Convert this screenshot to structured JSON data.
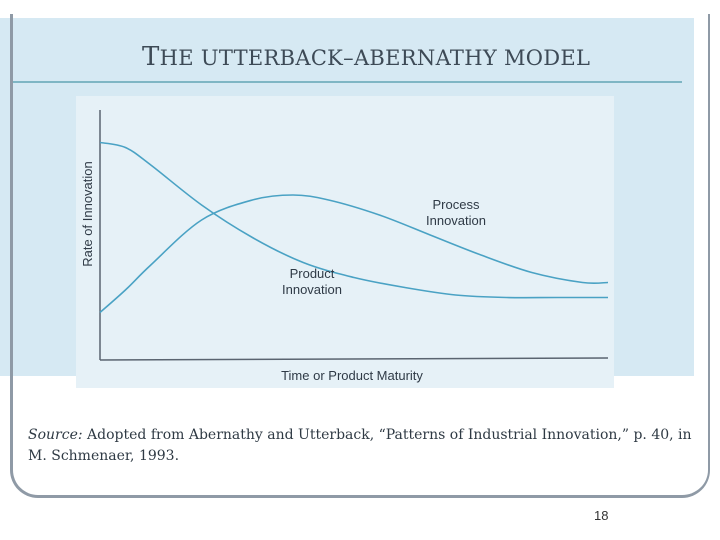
{
  "slide": {
    "title_lead": "T",
    "title_rest": "HE UTTERBACK–ABERNATHY MODEL",
    "source_label": "Source:",
    "source_text": "Adopted from Abernathy and Utterback, “Patterns of Industrial Innovation,” p. 40, in M. Schmenaer, 1993.",
    "page_number": "18"
  },
  "colors": {
    "background": "#d6e9f3",
    "chart_panel": "#e6f1f7",
    "curve": "#4aa2c4",
    "axis": "#5a6470",
    "text": "#2f3a46"
  },
  "chart_data": {
    "type": "line",
    "title": "",
    "xlabel": "Time or Product Maturity",
    "ylabel": "Rate of Innovation",
    "xlim": [
      0,
      1
    ],
    "ylim": [
      0,
      1
    ],
    "grid": false,
    "axis_ticks": false,
    "series": [
      {
        "name": "Product Innovation",
        "label_lines": [
          "Product",
          "Innovation"
        ],
        "x": [
          0.0,
          0.05,
          0.1,
          0.2,
          0.3,
          0.4,
          0.5,
          0.6,
          0.7,
          0.8,
          0.9,
          1.0
        ],
        "y": [
          0.87,
          0.85,
          0.78,
          0.62,
          0.49,
          0.39,
          0.33,
          0.29,
          0.26,
          0.25,
          0.25,
          0.25
        ]
      },
      {
        "name": "Process Innovation",
        "label_lines": [
          "Process",
          "Innovation"
        ],
        "x": [
          0.0,
          0.05,
          0.1,
          0.2,
          0.3,
          0.38,
          0.45,
          0.55,
          0.65,
          0.75,
          0.85,
          0.95,
          1.0
        ],
        "y": [
          0.19,
          0.28,
          0.38,
          0.56,
          0.64,
          0.66,
          0.64,
          0.58,
          0.5,
          0.42,
          0.35,
          0.31,
          0.31
        ]
      }
    ]
  }
}
